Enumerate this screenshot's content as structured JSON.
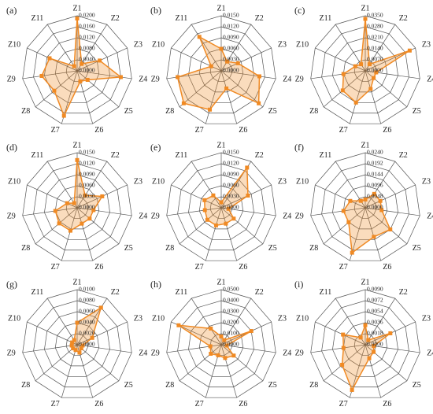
{
  "chart_data": [
    {
      "type": "radar",
      "title": "(a)",
      "categories": [
        "Z1",
        "Z2",
        "Z3",
        "Z4",
        "Z5",
        "Z6",
        "Z7",
        "Z8",
        "Z9",
        "Z10",
        "Z11"
      ],
      "values": [
        0.019,
        0.003,
        0.009,
        0.016,
        0.005,
        0.004,
        0.017,
        0.011,
        0.013,
        0.011,
        0.002
      ],
      "color": "#f08a24",
      "ylim": [
        0,
        0.02
      ],
      "yticks": [
        {
          "value": 0,
          "label": "0.0000"
        },
        {
          "value": 0.004,
          "label": "0.0040"
        },
        {
          "value": 0.008,
          "label": "0.0080"
        },
        {
          "value": 0.012,
          "label": "0.0120"
        },
        {
          "value": 0.016,
          "label": "0.0160"
        },
        {
          "value": 0.02,
          "label": "0.0200"
        }
      ]
    },
    {
      "type": "radar",
      "title": "(b)",
      "categories": [
        "Z1",
        "Z2",
        "Z3",
        "Z4",
        "Z5",
        "Z6",
        "Z7",
        "Z8",
        "Z9",
        "Z10",
        "Z11"
      ],
      "values": [
        0.006,
        0.003,
        0.005,
        0.0105,
        0.0135,
        0.005,
        0.011,
        0.0135,
        0.012,
        0.003,
        0.011
      ],
      "color": "#f08a24",
      "ylim": [
        0,
        0.015
      ],
      "yticks": [
        {
          "value": 0,
          "label": "0.0000"
        },
        {
          "value": 0.003,
          "label": "0.0030"
        },
        {
          "value": 0.006,
          "label": "0.0060"
        },
        {
          "value": 0.009,
          "label": "0.0090"
        },
        {
          "value": 0.012,
          "label": "0.0120"
        },
        {
          "value": 0.015,
          "label": "0.0150"
        }
      ]
    },
    {
      "type": "radar",
      "title": "(c)",
      "categories": [
        "Z1",
        "Z2",
        "Z3",
        "Z4",
        "Z5",
        "Z6",
        "Z7",
        "Z8",
        "Z9",
        "Z10",
        "Z11"
      ],
      "values": [
        0.033,
        0.005,
        0.031,
        0.007,
        0.007,
        0.012,
        0.021,
        0.019,
        0.014,
        0.007,
        0.005
      ],
      "color": "#f08a24",
      "ylim": [
        0,
        0.035
      ],
      "yticks": [
        {
          "value": 0,
          "label": "0.0000"
        },
        {
          "value": 0.007,
          "label": "0.0070"
        },
        {
          "value": 0.014,
          "label": "0.0140"
        },
        {
          "value": 0.021,
          "label": "0.0210"
        },
        {
          "value": 0.028,
          "label": "0.0280"
        },
        {
          "value": 0.035,
          "label": "0.0350"
        }
      ]
    },
    {
      "type": "radar",
      "title": "(d)",
      "categories": [
        "Z1",
        "Z2",
        "Z3",
        "Z4",
        "Z5",
        "Z6",
        "Z7",
        "Z8",
        "Z9",
        "Z10",
        "Z11"
      ],
      "values": [
        0.013,
        0.004,
        0.0075,
        0.0045,
        0.0045,
        0.0045,
        0.0065,
        0.0065,
        0.006,
        0.003,
        0.0015
      ],
      "color": "#f08a24",
      "ylim": [
        0,
        0.015
      ],
      "yticks": [
        {
          "value": 0,
          "label": "0.0000"
        },
        {
          "value": 0.003,
          "label": "0.0030"
        },
        {
          "value": 0.006,
          "label": "0.0060"
        },
        {
          "value": 0.009,
          "label": "0.0090"
        },
        {
          "value": 0.012,
          "label": "0.0120"
        },
        {
          "value": 0.015,
          "label": "0.0150"
        }
      ]
    },
    {
      "type": "radar",
      "title": "(e)",
      "categories": [
        "Z1",
        "Z2",
        "Z3",
        "Z4",
        "Z5",
        "Z6",
        "Z7",
        "Z8",
        "Z9",
        "Z10",
        "Z11"
      ],
      "values": [
        0.0015,
        0.013,
        0.008,
        0.002,
        0.0045,
        0.0045,
        0.005,
        0.005,
        0.0045,
        0.005,
        0.004
      ],
      "color": "#f08a24",
      "ylim": [
        0,
        0.015
      ],
      "yticks": [
        {
          "value": 0,
          "label": "0.0000"
        },
        {
          "value": 0.003,
          "label": "0.0030"
        },
        {
          "value": 0.006,
          "label": "0.0060"
        },
        {
          "value": 0.009,
          "label": "0.0090"
        },
        {
          "value": 0.012,
          "label": "0.0120"
        },
        {
          "value": 0.015,
          "label": "0.0150"
        }
      ]
    },
    {
      "type": "radar",
      "title": "(f)",
      "categories": [
        "Z1",
        "Z2",
        "Z3",
        "Z4",
        "Z5",
        "Z6",
        "Z7",
        "Z8",
        "Z9",
        "Z10",
        "Z11"
      ],
      "values": [
        0.0036,
        0.0072,
        0.0072,
        0.0072,
        0.0144,
        0.0132,
        0.0204,
        0.0096,
        0.0096,
        0.0072,
        0.0036
      ],
      "color": "#f08a24",
      "ylim": [
        0,
        0.024
      ],
      "yticks": [
        {
          "value": 0,
          "label": "0.0000"
        },
        {
          "value": 0.0048,
          "label": "0.0048"
        },
        {
          "value": 0.0096,
          "label": "0.0096"
        },
        {
          "value": 0.0144,
          "label": "0.0144"
        },
        {
          "value": 0.0192,
          "label": "0.0192"
        },
        {
          "value": 0.024,
          "label": "0.0240"
        }
      ]
    },
    {
      "type": "radar",
      "title": "(g)",
      "categories": [
        "Z1",
        "Z2",
        "Z3",
        "Z4",
        "Z5",
        "Z6",
        "Z7",
        "Z8",
        "Z9",
        "Z10",
        "Z11"
      ],
      "values": [
        0.004,
        0.008,
        0.003,
        0.001,
        0.001,
        0.0015,
        0.001,
        0.001,
        0.001,
        0.001,
        0.001
      ],
      "color": "#f08a24",
      "ylim": [
        0,
        0.01
      ],
      "yticks": [
        {
          "value": 0,
          "label": "0.0000"
        },
        {
          "value": 0.002,
          "label": "0.0020"
        },
        {
          "value": 0.004,
          "label": "0.0040"
        },
        {
          "value": 0.006,
          "label": "0.0060"
        },
        {
          "value": 0.008,
          "label": "0.0080"
        },
        {
          "value": 0.01,
          "label": "0.0100"
        }
      ]
    },
    {
      "type": "radar",
      "title": "(h)",
      "categories": [
        "Z1",
        "Z2",
        "Z3",
        "Z4",
        "Z5",
        "Z6",
        "Z7",
        "Z8",
        "Z9",
        "Z10",
        "Z11"
      ],
      "values": [
        0.0075,
        0.005,
        0.03,
        0.005,
        0.015,
        0.0125,
        0.01,
        0.0125,
        0.01,
        0.0425,
        0.0175
      ],
      "color": "#f08a24",
      "ylim": [
        0,
        0.05
      ],
      "yticks": [
        {
          "value": 0,
          "label": "0.0000"
        },
        {
          "value": 0.01,
          "label": "0.0100"
        },
        {
          "value": 0.02,
          "label": "0.0200"
        },
        {
          "value": 0.03,
          "label": "0.0300"
        },
        {
          "value": 0.04,
          "label": "0.0400"
        },
        {
          "value": 0.05,
          "label": "0.0500"
        }
      ]
    },
    {
      "type": "radar",
      "title": "(i)",
      "categories": [
        "Z1",
        "Z2",
        "Z3",
        "Z4",
        "Z5",
        "Z6",
        "Z7",
        "Z8",
        "Z9",
        "Z10",
        "Z11"
      ],
      "values": [
        0.0032,
        0.0009,
        0.0045,
        0.0014,
        0.0018,
        0.0023,
        0.0077,
        0.005,
        0.0036,
        0.004,
        0.0014
      ],
      "color": "#f08a24",
      "ylim": [
        0,
        0.009
      ],
      "yticks": [
        {
          "value": 0,
          "label": "0.0000"
        },
        {
          "value": 0.0018,
          "label": "0.0018"
        },
        {
          "value": 0.0036,
          "label": "0.0036"
        },
        {
          "value": 0.0054,
          "label": "0.0054"
        },
        {
          "value": 0.0072,
          "label": "0.0072"
        },
        {
          "value": 0.009,
          "label": "0.0090"
        }
      ]
    }
  ]
}
